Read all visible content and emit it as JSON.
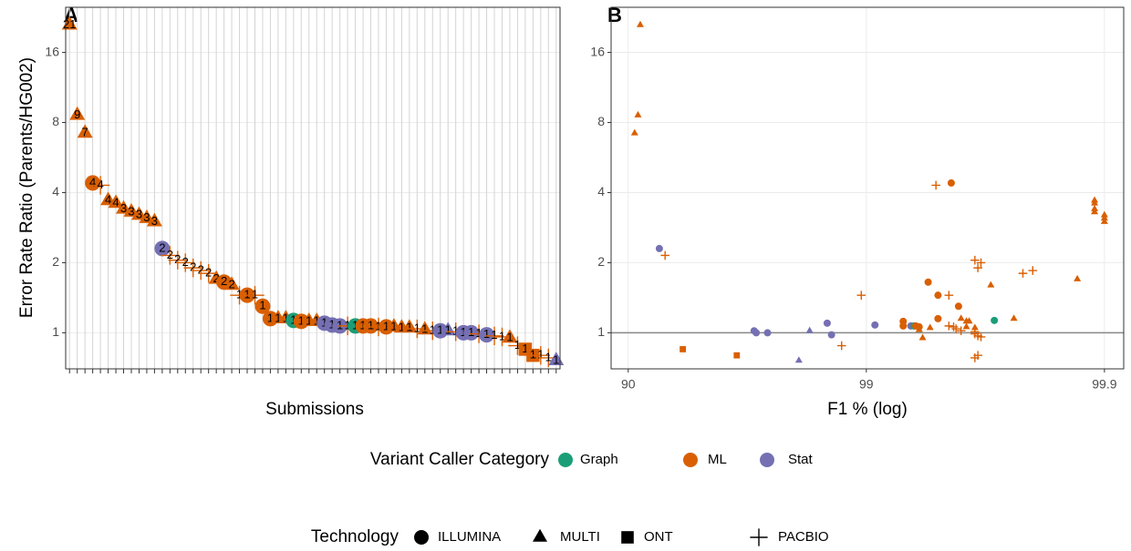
{
  "chart_data": [
    {
      "type": "dot",
      "panel": "A",
      "xlabel": "Submissions",
      "ylabel": "Error Rate Ratio (Parents/HG002)",
      "yscale": "log",
      "ylim": [
        0.7,
        25
      ],
      "yticks": [
        1,
        2,
        4,
        8,
        16
      ],
      "grid": true,
      "values": [
        21,
        8.6,
        7.2,
        4.4,
        4.3,
        3.7,
        3.6,
        3.4,
        3.3,
        3.2,
        3.1,
        3.0,
        2.3,
        2.15,
        2.05,
        2.0,
        1.9,
        1.85,
        1.8,
        1.7,
        1.65,
        1.6,
        1.45,
        1.45,
        1.45,
        1.3,
        1.15,
        1.15,
        1.15,
        1.13,
        1.12,
        1.12,
        1.12,
        1.1,
        1.08,
        1.07,
        1.07,
        1.07,
        1.07,
        1.07,
        1.06,
        1.06,
        1.06,
        1.05,
        1.05,
        1.04,
        1.03,
        1.02,
        1.02,
        1.02,
        1.01,
        1.0,
        1.0,
        0.99,
        0.98,
        0.97,
        0.96,
        0.95,
        0.88,
        0.85,
        0.8,
        0.8,
        0.78,
        0.76
      ],
      "value_labels": [
        "21",
        "9",
        "7",
        "4",
        "4",
        "4",
        "4",
        "3",
        "3",
        "3",
        "3",
        "3",
        "2",
        "2",
        "2",
        "2",
        "2",
        "2",
        "2",
        "2",
        "2",
        "2",
        "1",
        "1",
        "1",
        "1",
        "1",
        "1",
        "1",
        "1",
        "1",
        "1",
        "1",
        "1",
        "1",
        "1",
        "1",
        "1",
        "1",
        "1",
        "1",
        "1",
        "1",
        "1",
        "1",
        "1",
        "1",
        "1",
        "1",
        "1",
        "1",
        "1",
        "1",
        "1",
        "1",
        "1",
        "1",
        "1",
        "1",
        "1",
        "1",
        "1",
        "1",
        "1"
      ],
      "groups": [
        "ML",
        "ML",
        "ML",
        "ML",
        "ML",
        "ML",
        "ML",
        "ML",
        "ML",
        "ML",
        "ML",
        "ML",
        "Stat",
        "ML",
        "ML",
        "ML",
        "ML",
        "ML",
        "ML",
        "ML",
        "ML",
        "ML",
        "ML",
        "ML",
        "ML",
        "ML",
        "ML",
        "ML",
        "ML",
        "Graph",
        "ML",
        "ML",
        "ML",
        "Stat",
        "Stat",
        "Stat",
        "ML",
        "Graph",
        "ML",
        "ML",
        "ML",
        "ML",
        "ML",
        "ML",
        "ML",
        "ML",
        "ML",
        "ML",
        "Stat",
        "Stat",
        "ML",
        "Stat",
        "Stat",
        "ML",
        "Stat",
        "ML",
        "ML",
        "ML",
        "ML",
        "ML",
        "ML",
        "ML",
        "ML",
        "Stat"
      ],
      "shapes": [
        "MULTI",
        "MULTI",
        "MULTI",
        "ILLUMINA",
        "PACBIO",
        "MULTI",
        "MULTI",
        "MULTI",
        "MULTI",
        "MULTI",
        "MULTI",
        "MULTI",
        "ILLUMINA",
        "PACBIO",
        "PACBIO",
        "PACBIO",
        "PACBIO",
        "PACBIO",
        "PACBIO",
        "MULTI",
        "ILLUMINA",
        "MULTI",
        "PACBIO",
        "ILLUMINA",
        "PACBIO",
        "ILLUMINA",
        "ILLUMINA",
        "MULTI",
        "MULTI",
        "ILLUMINA",
        "ILLUMINA",
        "MULTI",
        "MULTI",
        "ILLUMINA",
        "ILLUMINA",
        "ILLUMINA",
        "PACBIO",
        "ILLUMINA",
        "ILLUMINA",
        "ILLUMINA",
        "PACBIO",
        "ILLUMINA",
        "MULTI",
        "MULTI",
        "MULTI",
        "PACBIO",
        "MULTI",
        "PACBIO",
        "ILLUMINA",
        "MULTI",
        "PACBIO",
        "ILLUMINA",
        "ILLUMINA",
        "PACBIO",
        "ILLUMINA",
        "PACBIO",
        "PACBIO",
        "MULTI",
        "PACBIO",
        "ONT",
        "ONT",
        "PACBIO",
        "PACBIO",
        "MULTI"
      ]
    },
    {
      "type": "scatter",
      "panel": "B",
      "xlabel": "F1 % (log)",
      "xscale": "log-complement",
      "xlim": [
        88.2,
        99.917
      ],
      "xticks": [
        90,
        99,
        99.9
      ],
      "yscale": "log",
      "ylim": [
        0.7,
        25
      ],
      "yticks": [
        1,
        2,
        4,
        8,
        16
      ],
      "grid": true,
      "hline": 1,
      "x": [
        91.1,
        90.9,
        90.6,
        99.56,
        99.49,
        99.89,
        99.89,
        99.89,
        99.89,
        99.9,
        99.9,
        99.9,
        92.6,
        93.0,
        99.65,
        99.67,
        99.66,
        99.8,
        99.78,
        99.87,
        99.45,
        99.7,
        98.95,
        99.5,
        99.55,
        99.59,
        99.5,
        99.6,
        99.76,
        99.71,
        99.3,
        99.62,
        99.63,
        98.54,
        99.08,
        99.35,
        99.55,
        99.37,
        99.3,
        99.38,
        99.57,
        99.4,
        99.62,
        99.65,
        99.46,
        99.58,
        99.4,
        99.6,
        97.04,
        98.27,
        99.65,
        97.1,
        97.4,
        99.65,
        98.6,
        99.66,
        99.67,
        99.42,
        98.73,
        94.1,
        96.5,
        99.66,
        99.65,
        98.08
      ],
      "y": [
        21,
        8.6,
        7.2,
        4.4,
        4.3,
        3.7,
        3.6,
        3.4,
        3.3,
        3.2,
        3.1,
        3.0,
        2.3,
        2.15,
        2.05,
        2.0,
        1.9,
        1.85,
        1.8,
        1.7,
        1.65,
        1.6,
        1.45,
        1.45,
        1.45,
        1.3,
        1.15,
        1.15,
        1.15,
        1.13,
        1.12,
        1.12,
        1.12,
        1.1,
        1.08,
        1.07,
        1.07,
        1.07,
        1.07,
        1.07,
        1.06,
        1.06,
        1.06,
        1.05,
        1.05,
        1.04,
        1.03,
        1.02,
        1.02,
        1.02,
        1.01,
        1.0,
        1.0,
        0.99,
        0.98,
        0.97,
        0.96,
        0.95,
        0.88,
        0.85,
        0.8,
        0.8,
        0.78,
        0.76
      ],
      "groups": [
        "ML",
        "ML",
        "ML",
        "ML",
        "ML",
        "ML",
        "ML",
        "ML",
        "ML",
        "ML",
        "ML",
        "ML",
        "Stat",
        "ML",
        "ML",
        "ML",
        "ML",
        "ML",
        "ML",
        "ML",
        "ML",
        "ML",
        "ML",
        "ML",
        "ML",
        "ML",
        "ML",
        "ML",
        "ML",
        "Graph",
        "ML",
        "ML",
        "ML",
        "Stat",
        "Stat",
        "Stat",
        "ML",
        "Graph",
        "ML",
        "ML",
        "ML",
        "ML",
        "ML",
        "ML",
        "ML",
        "ML",
        "ML",
        "ML",
        "Stat",
        "Stat",
        "ML",
        "Stat",
        "Stat",
        "ML",
        "Stat",
        "ML",
        "ML",
        "ML",
        "ML",
        "ML",
        "ML",
        "ML",
        "ML",
        "Stat"
      ],
      "shapes": [
        "MULTI",
        "MULTI",
        "MULTI",
        "ILLUMINA",
        "PACBIO",
        "MULTI",
        "MULTI",
        "MULTI",
        "MULTI",
        "MULTI",
        "MULTI",
        "MULTI",
        "ILLUMINA",
        "PACBIO",
        "PACBIO",
        "PACBIO",
        "PACBIO",
        "PACBIO",
        "PACBIO",
        "MULTI",
        "ILLUMINA",
        "MULTI",
        "PACBIO",
        "ILLUMINA",
        "PACBIO",
        "ILLUMINA",
        "ILLUMINA",
        "MULTI",
        "MULTI",
        "ILLUMINA",
        "ILLUMINA",
        "MULTI",
        "MULTI",
        "ILLUMINA",
        "ILLUMINA",
        "ILLUMINA",
        "PACBIO",
        "ILLUMINA",
        "ILLUMINA",
        "ILLUMINA",
        "PACBIO",
        "ILLUMINA",
        "MULTI",
        "MULTI",
        "MULTI",
        "PACBIO",
        "MULTI",
        "PACBIO",
        "ILLUMINA",
        "MULTI",
        "PACBIO",
        "ILLUMINA",
        "ILLUMINA",
        "PACBIO",
        "ILLUMINA",
        "PACBIO",
        "PACBIO",
        "MULTI",
        "PACBIO",
        "ONT",
        "ONT",
        "PACBIO",
        "PACBIO",
        "MULTI"
      ]
    }
  ],
  "legends": [
    {
      "title": "Variant Caller Category",
      "items": [
        {
          "name": "Graph",
          "color": "#1b9e77"
        },
        {
          "name": "ML",
          "color": "#d95f02"
        },
        {
          "name": "Stat",
          "color": "#7570b3"
        }
      ]
    },
    {
      "title": "Technology",
      "items": [
        {
          "name": "ILLUMINA",
          "shape": "circle"
        },
        {
          "name": "MULTI",
          "shape": "triangle"
        },
        {
          "name": "ONT",
          "shape": "square"
        },
        {
          "name": "PACBIO",
          "shape": "plus"
        }
      ]
    }
  ]
}
